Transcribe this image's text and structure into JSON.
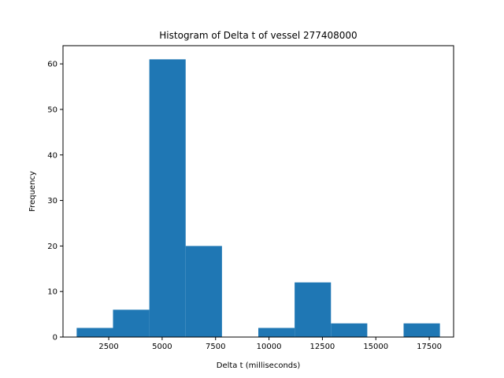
{
  "chart_data": {
    "type": "bar",
    "title": "Histogram of Delta t of vessel 277408000",
    "xlabel": "Delta t (milliseconds)",
    "ylabel": "Frequency",
    "bin_edges": [
      1000,
      2700,
      4400,
      6100,
      7800,
      9500,
      11200,
      12900,
      14600,
      16300,
      18000
    ],
    "values": [
      2,
      6,
      61,
      20,
      0,
      2,
      12,
      3,
      0,
      3
    ],
    "xlim": [
      360,
      18640
    ],
    "ylim": [
      0,
      64
    ],
    "x_ticks": [
      2500,
      5000,
      7500,
      10000,
      12500,
      15000,
      17500
    ],
    "y_ticks": [
      0,
      10,
      20,
      30,
      40,
      50,
      60
    ],
    "bar_color": "#1f77b4",
    "grid": false,
    "legend": "none"
  }
}
